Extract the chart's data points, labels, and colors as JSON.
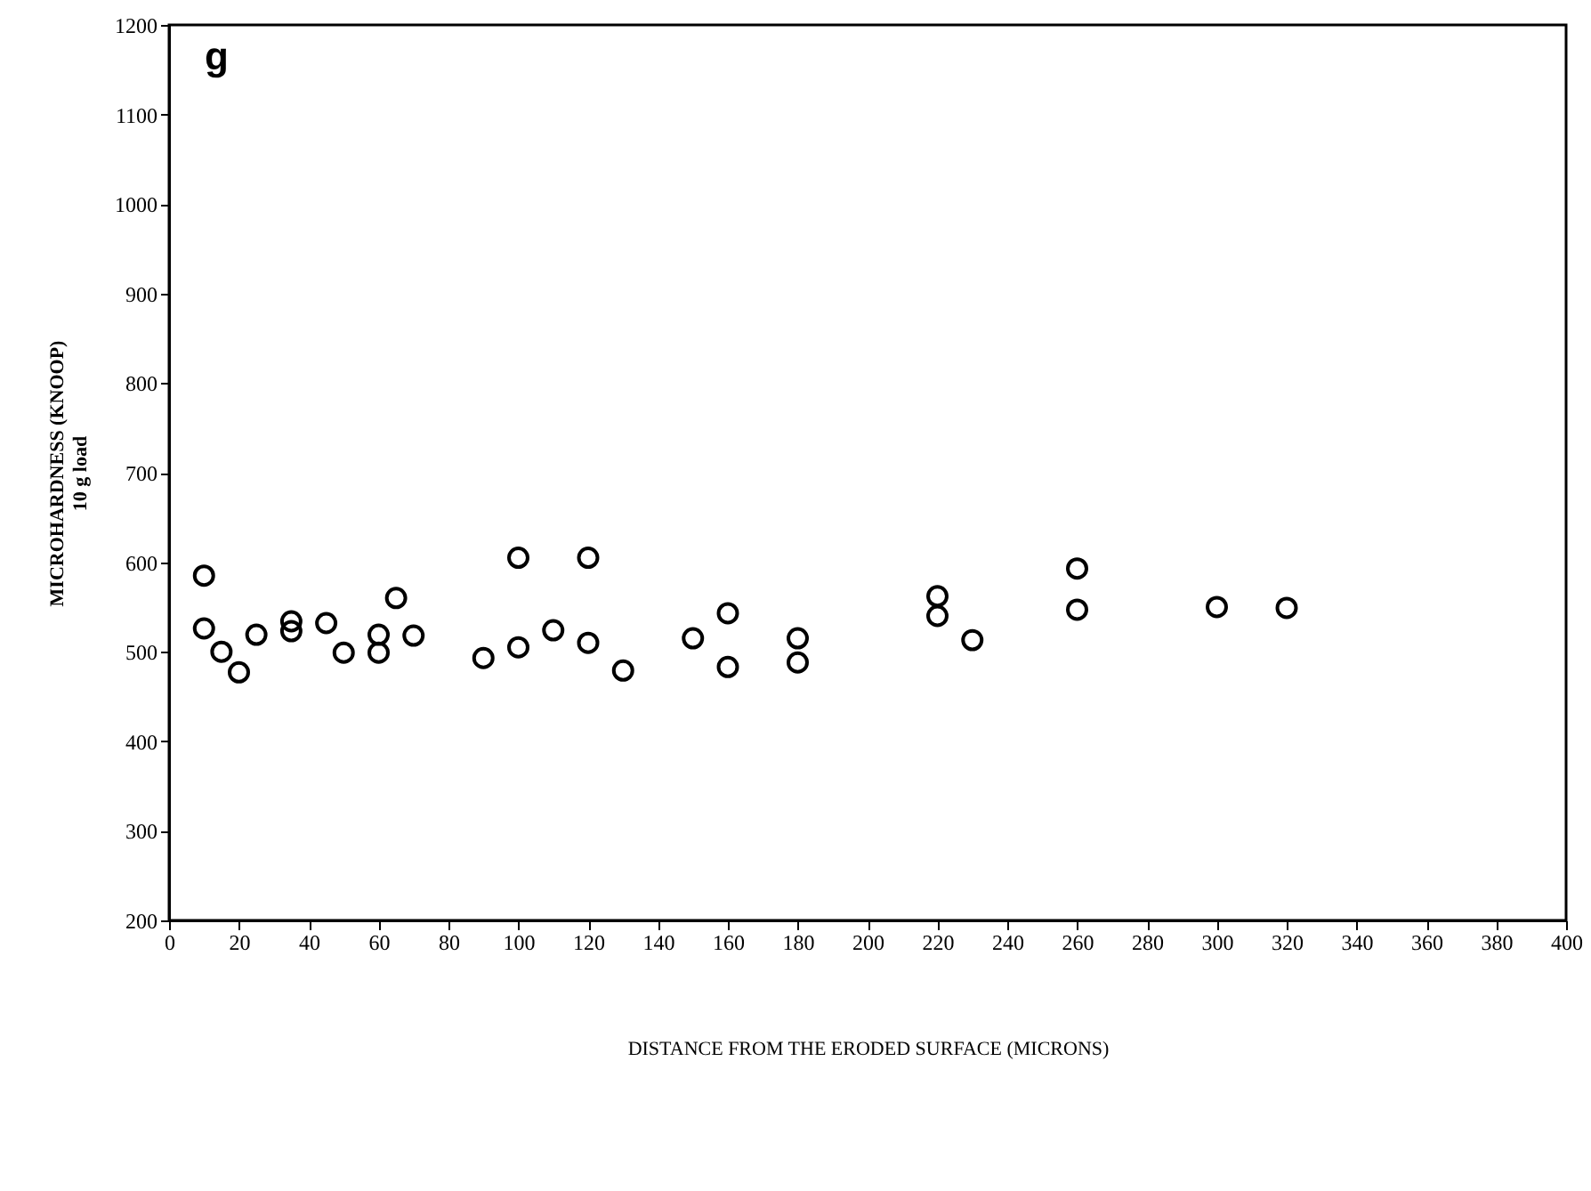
{
  "chart_data": {
    "type": "scatter",
    "xlabel": "DISTANCE FROM THE ERODED SURFACE (MICRONS)",
    "ylabel": "MICROHARDNESS (KNOOP)\n10 g load",
    "annotations": [
      "g"
    ],
    "x": [
      10,
      10,
      15,
      20,
      25,
      35,
      35,
      45,
      50,
      60,
      60,
      65,
      70,
      90,
      100,
      100,
      110,
      120,
      120,
      130,
      150,
      160,
      160,
      180,
      180,
      220,
      220,
      230,
      260,
      260,
      300,
      320
    ],
    "series": [
      {
        "color": "#000000",
        "values": [
          585,
          526,
          500,
          477,
          519,
          534,
          523,
          532,
          499,
          519,
          499,
          560,
          518,
          493,
          605,
          505,
          524,
          605,
          510,
          479,
          515,
          543,
          483,
          515,
          488,
          562,
          540,
          513,
          593,
          547,
          550,
          549
        ]
      }
    ],
    "xlim": [
      0,
      400
    ],
    "xticks": [
      0,
      20,
      40,
      60,
      80,
      100,
      120,
      140,
      160,
      180,
      200,
      220,
      240,
      260,
      280,
      300,
      320,
      340,
      360,
      380,
      400
    ],
    "ylim": [
      200,
      1200
    ],
    "yticks": [
      200,
      300,
      400,
      500,
      600,
      700,
      800,
      900,
      1000,
      1100,
      1200
    ],
    "grid": false,
    "marker": "circle"
  }
}
